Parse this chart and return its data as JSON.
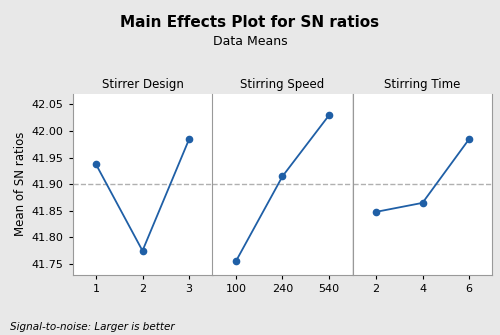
{
  "title": "Main Effects Plot for SN ratios",
  "subtitle": "Data Means",
  "ylabel": "Mean of SN ratios",
  "footnote": "Signal-to-noise: Larger is better",
  "grand_mean": 41.9,
  "fig_bg_color": "#e8e8e8",
  "plot_bg_color": "#ffffff",
  "line_color": "#1f5fa6",
  "dashed_color": "#b0b0b0",
  "spine_color": "#999999",
  "panels": [
    {
      "title": "Stirrer Design",
      "x_labels": [
        "1",
        "2",
        "3"
      ],
      "x_values": [
        1,
        2,
        3
      ],
      "y_values": [
        41.938,
        41.775,
        41.985
      ]
    },
    {
      "title": "Stirring Speed",
      "x_labels": [
        "100",
        "240",
        "540"
      ],
      "x_values": [
        1,
        2,
        3
      ],
      "y_values": [
        41.755,
        41.915,
        42.03
      ]
    },
    {
      "title": "Stirring Time",
      "x_labels": [
        "2",
        "4",
        "6"
      ],
      "x_values": [
        1,
        2,
        3
      ],
      "y_values": [
        41.848,
        41.865,
        41.985
      ]
    }
  ],
  "ylim": [
    41.73,
    42.07
  ],
  "yticks": [
    41.75,
    41.8,
    41.85,
    41.9,
    41.95,
    42.0,
    42.05
  ],
  "title_fontsize": 11,
  "subtitle_fontsize": 9,
  "panel_title_fontsize": 8.5,
  "ylabel_fontsize": 8.5,
  "tick_fontsize": 8,
  "footnote_fontsize": 7.5
}
